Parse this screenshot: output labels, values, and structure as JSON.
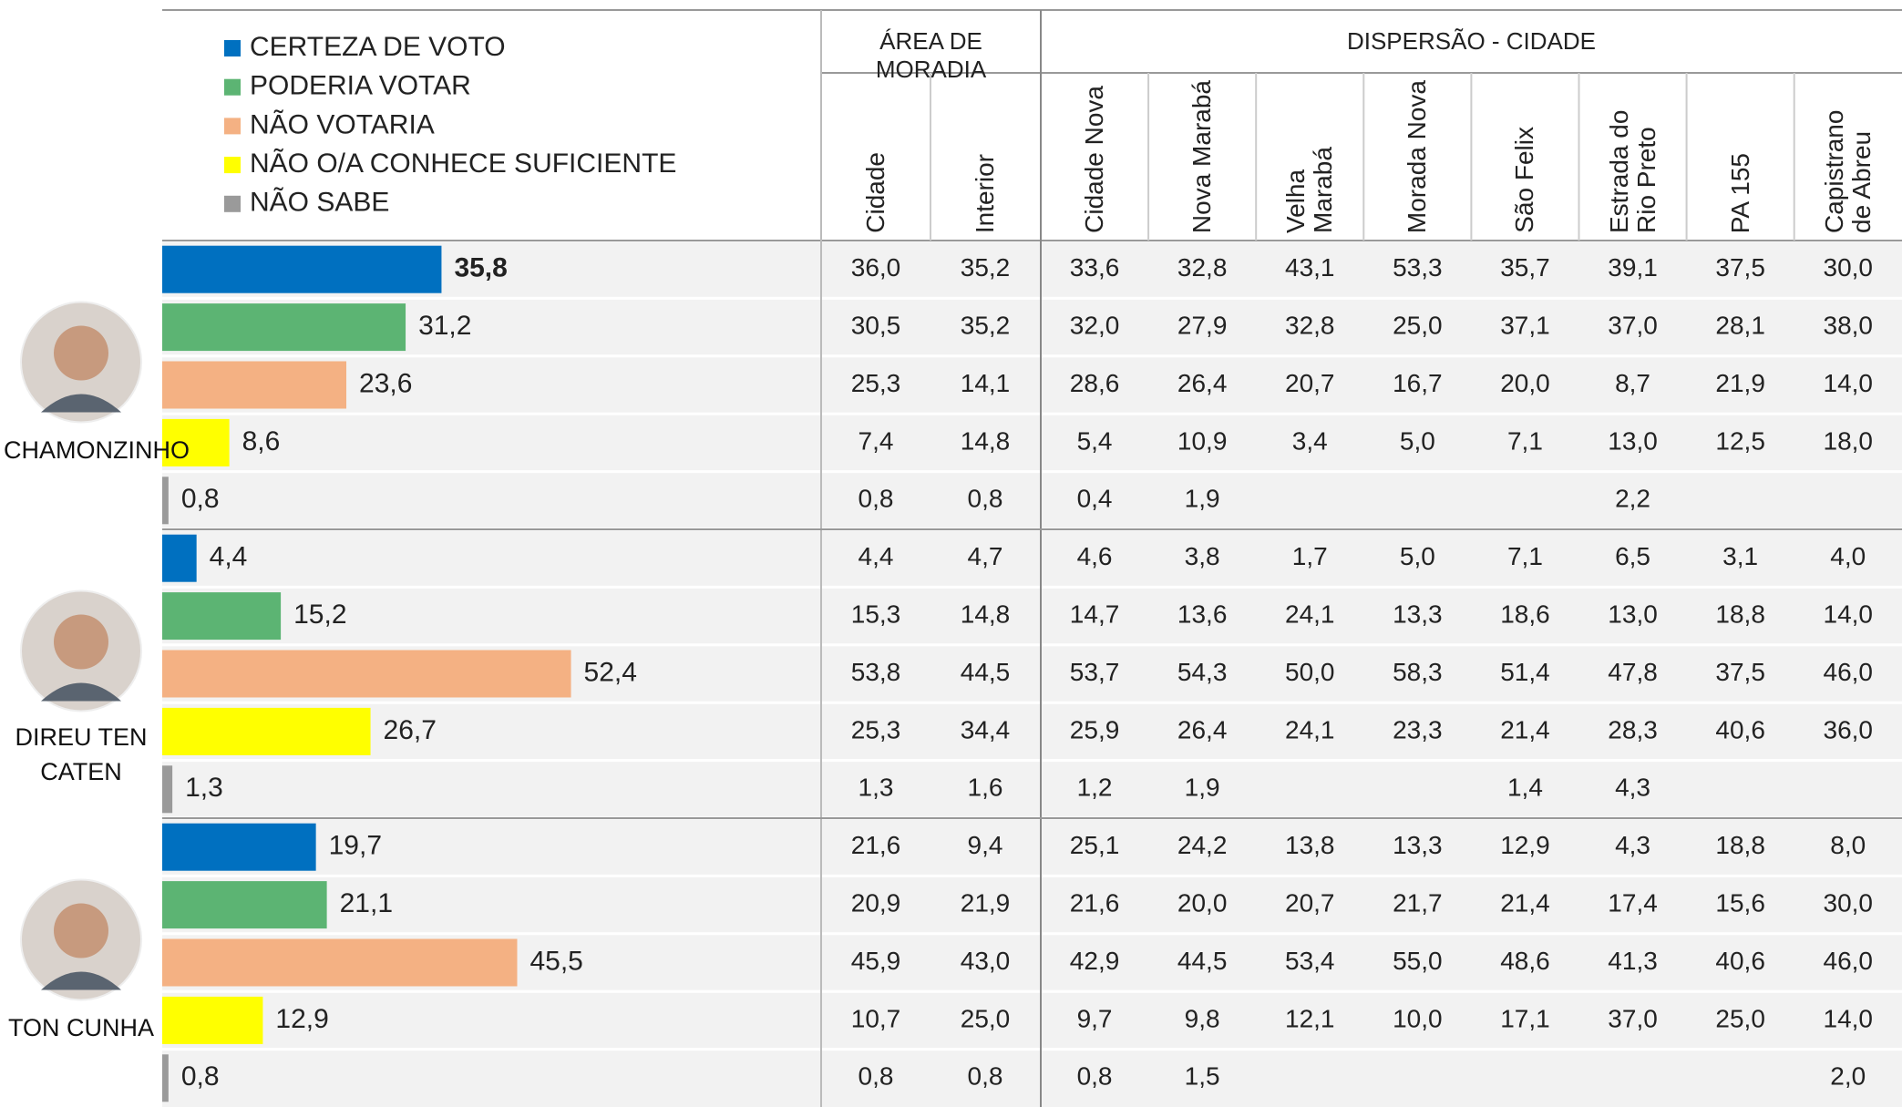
{
  "chart_data": {
    "type": "bar",
    "xlim": [
      0,
      100
    ],
    "series": [
      {
        "name": "CERTEZA DE VOTO",
        "color": "#0070c0"
      },
      {
        "name": "PODERIA VOTAR",
        "color": "#5cb473"
      },
      {
        "name": "NÃO VOTARIA",
        "color": "#f4b183"
      },
      {
        "name": "NÃO O/A CONHECE SUFICIENTE",
        "color": "#ffff00"
      },
      {
        "name": "NÃO SABE",
        "color": "#9a9a9a"
      }
    ],
    "groups": [
      {
        "name": "CHAMONZINHO",
        "values": [
          35.8,
          31.2,
          23.6,
          8.6,
          0.8
        ],
        "value_labels": [
          "35,8",
          "31,2",
          "23,6",
          "8,6",
          "0,8"
        ],
        "table": [
          [
            "36,0",
            "35,2",
            "33,6",
            "32,8",
            "43,1",
            "53,3",
            "35,7",
            "39,1",
            "37,5",
            "30,0"
          ],
          [
            "30,5",
            "35,2",
            "32,0",
            "27,9",
            "32,8",
            "25,0",
            "37,1",
            "37,0",
            "28,1",
            "38,0"
          ],
          [
            "25,3",
            "14,1",
            "28,6",
            "26,4",
            "20,7",
            "16,7",
            "20,0",
            "8,7",
            "21,9",
            "14,0"
          ],
          [
            "7,4",
            "14,8",
            "5,4",
            "10,9",
            "3,4",
            "5,0",
            "7,1",
            "13,0",
            "12,5",
            "18,0"
          ],
          [
            "0,8",
            "0,8",
            "0,4",
            "1,9",
            null,
            null,
            null,
            "2,2",
            null,
            null
          ]
        ]
      },
      {
        "name": "DIREU TEN CATEN",
        "values": [
          4.4,
          15.2,
          52.4,
          26.7,
          1.3
        ],
        "value_labels": [
          "4,4",
          "15,2",
          "52,4",
          "26,7",
          "1,3"
        ],
        "table": [
          [
            "4,4",
            "4,7",
            "4,6",
            "3,8",
            "1,7",
            "5,0",
            "7,1",
            "6,5",
            "3,1",
            "4,0"
          ],
          [
            "15,3",
            "14,8",
            "14,7",
            "13,6",
            "24,1",
            "13,3",
            "18,6",
            "13,0",
            "18,8",
            "14,0"
          ],
          [
            "53,8",
            "44,5",
            "53,7",
            "54,3",
            "50,0",
            "58,3",
            "51,4",
            "47,8",
            "37,5",
            "46,0"
          ],
          [
            "25,3",
            "34,4",
            "25,9",
            "26,4",
            "24,1",
            "23,3",
            "21,4",
            "28,3",
            "40,6",
            "36,0"
          ],
          [
            "1,3",
            "1,6",
            "1,2",
            "1,9",
            null,
            null,
            "1,4",
            "4,3",
            null,
            null
          ]
        ]
      },
      {
        "name": "TON CUNHA",
        "values": [
          19.7,
          21.1,
          45.5,
          12.9,
          0.8
        ],
        "value_labels": [
          "19,7",
          "21,1",
          "45,5",
          "12,9",
          "0,8"
        ],
        "table": [
          [
            "21,6",
            "9,4",
            "25,1",
            "24,2",
            "13,8",
            "13,3",
            "12,9",
            "4,3",
            "18,8",
            "8,0"
          ],
          [
            "20,9",
            "21,9",
            "21,6",
            "20,0",
            "20,7",
            "21,7",
            "21,4",
            "17,4",
            "15,6",
            "30,0"
          ],
          [
            "45,9",
            "43,0",
            "42,9",
            "44,5",
            "53,4",
            "55,0",
            "48,6",
            "41,3",
            "40,6",
            "46,0"
          ],
          [
            "10,7",
            "25,0",
            "9,7",
            "9,8",
            "12,1",
            "10,0",
            "17,1",
            "37,0",
            "25,0",
            "14,0"
          ],
          [
            "0,8",
            "0,8",
            "0,8",
            "1,5",
            null,
            null,
            null,
            null,
            null,
            "2,0"
          ]
        ]
      }
    ]
  },
  "table": {
    "column_groups": [
      {
        "label": "ÁREA DE MORADIA",
        "columns": [
          "Cidade",
          "Interior"
        ]
      },
      {
        "label": "DISPERSÃO - CIDADE",
        "columns": [
          "Cidade Nova",
          "Nova Marabá",
          "Velha Marabá",
          "Morada Nova",
          "São Felix",
          "Estrada do Rio Preto",
          "PA 155",
          "Capistrano de Abreu"
        ]
      }
    ]
  }
}
